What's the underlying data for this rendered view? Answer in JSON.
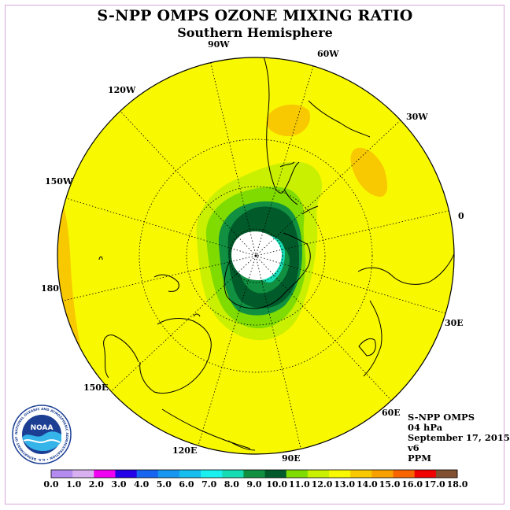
{
  "title": "S-NPP OMPS OZONE MIXING RATIO",
  "subtitle": "Southern Hemisphere",
  "longitude_labels": [
    "90W",
    "60W",
    "30W",
    "0",
    "30E",
    "60E",
    "90E",
    "120E",
    "150E",
    "180",
    "150W",
    "120W"
  ],
  "info": {
    "instrument": "S-NPP OMPS",
    "level": "04 hPa",
    "date": "September 17, 2015",
    "version": "v6",
    "units": "PPM"
  },
  "logo": {
    "name": "NOAA",
    "ring_text": "NATIONAL OCEANIC AND ATMOSPHERIC ADMINISTRATION • U.S. DEPARTMENT OF COMMERCE"
  },
  "colorbar": {
    "labels": [
      "0.0",
      "1.0",
      "2.0",
      "3.0",
      "4.0",
      "5.0",
      "6.0",
      "7.0",
      "8.0",
      "9.0",
      "10.0",
      "11.0",
      "12.0",
      "13.0",
      "14.0",
      "15.0",
      "16.0",
      "17.0",
      "18.0"
    ],
    "colors": [
      "#b48cf0",
      "#d8b0f0",
      "#f000f0",
      "#2400e8",
      "#1664f0",
      "#1696f0",
      "#16bef0",
      "#1af0f0",
      "#16dcb4",
      "#109040",
      "#005a2a",
      "#80dc00",
      "#c8f000",
      "#f8f800",
      "#f8c800",
      "#f8a000",
      "#f86400",
      "#f00000",
      "#805030"
    ]
  },
  "chart_data": {
    "type": "polar-stereographic map",
    "variable": "ozone mixing ratio",
    "units": "PPM",
    "level_hPa": 4,
    "region": "Southern Hemisphere",
    "date": "September 17, 2015",
    "color_levels": [
      0,
      1,
      2,
      3,
      4,
      5,
      6,
      7,
      8,
      9,
      10,
      11,
      12,
      13,
      14,
      15,
      16,
      17,
      18
    ],
    "pole_no_data": true,
    "dominant_range": [
      12,
      13
    ]
  }
}
